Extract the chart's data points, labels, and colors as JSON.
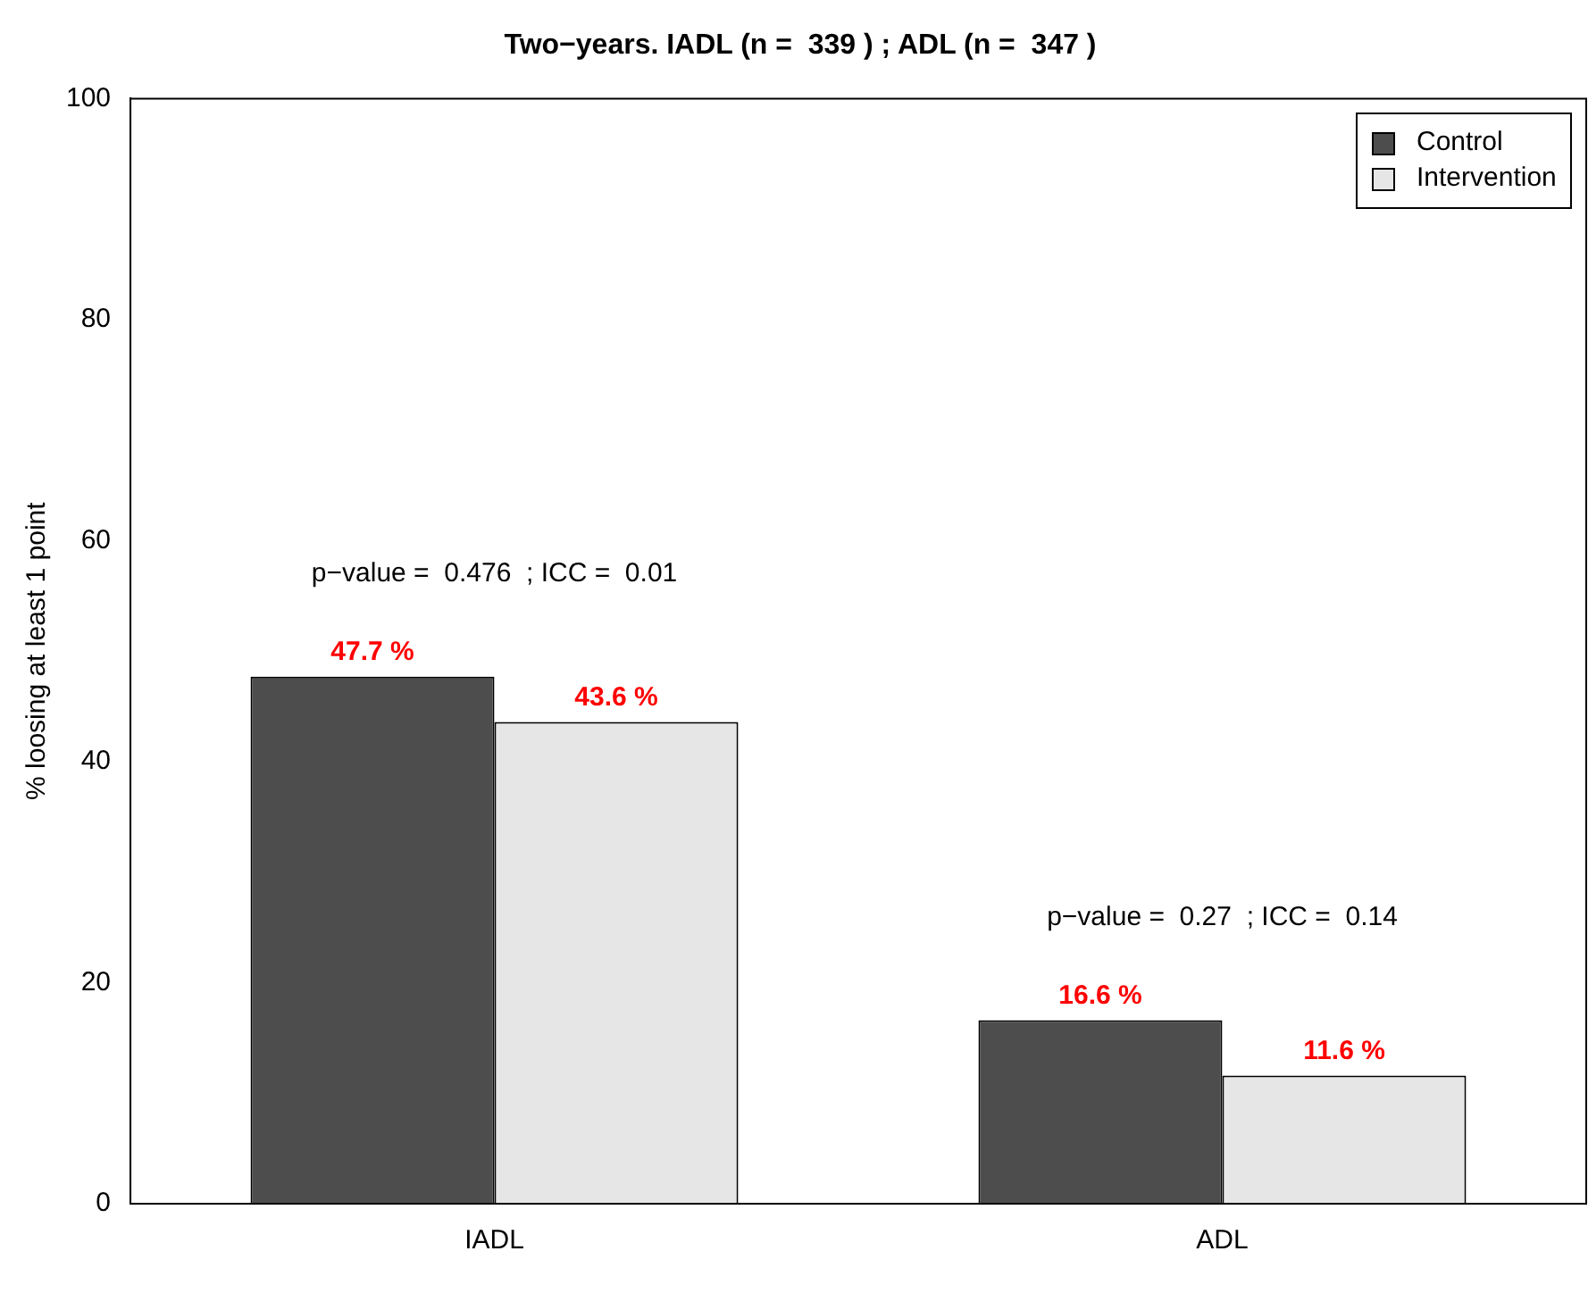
{
  "chart_data": {
    "type": "bar",
    "title": "Two−years. IADL (n =  339 ) ; ADL (n =  347 )",
    "ylabel": "% loosing at least 1 point",
    "categories": [
      "IADL",
      "ADL"
    ],
    "series": [
      {
        "name": "Control",
        "color": "#4d4d4d",
        "values": [
          47.7,
          16.6
        ],
        "value_labels": [
          "47.7 %",
          "16.6 %"
        ]
      },
      {
        "name": "Intervention",
        "color": "#e6e6e6",
        "values": [
          43.6,
          11.6
        ],
        "value_labels": [
          "43.6 %",
          "11.6 %"
        ]
      }
    ],
    "ylim": [
      0,
      100
    ],
    "yticks": [
      0,
      20,
      40,
      60,
      80,
      100
    ],
    "grid": false,
    "legend": "top right",
    "annotations": [
      "p−value =  0.476  ; ICC =  0.01",
      "p−value =  0.27  ; ICC =  0.14"
    ]
  }
}
